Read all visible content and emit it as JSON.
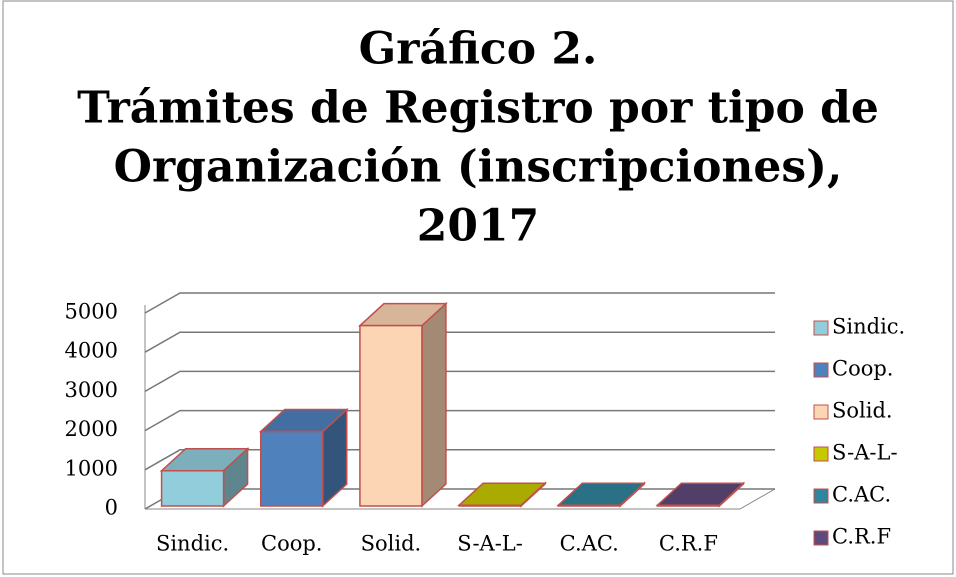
{
  "chart_data": {
    "type": "bar3d",
    "title": [
      "Gráfico 2.",
      "Trámites de Registro por tipo de",
      "Organización (inscripciones),",
      "2017"
    ],
    "categories": [
      "Sindic.",
      "Coop.",
      "Solid.",
      "S-A-L-",
      "C.AC.",
      "C.R.F"
    ],
    "values": [
      900,
      1900,
      4600,
      20,
      20,
      20
    ],
    "colors": [
      "#92cddc",
      "#4f81bd",
      "#fcd5b4",
      "#c8c800",
      "#31859c",
      "#604a7b"
    ],
    "ylim": [
      0,
      5000
    ],
    "yticks": [
      0,
      1000,
      2000,
      3000,
      4000,
      5000
    ],
    "grid": true,
    "legend": "right"
  }
}
